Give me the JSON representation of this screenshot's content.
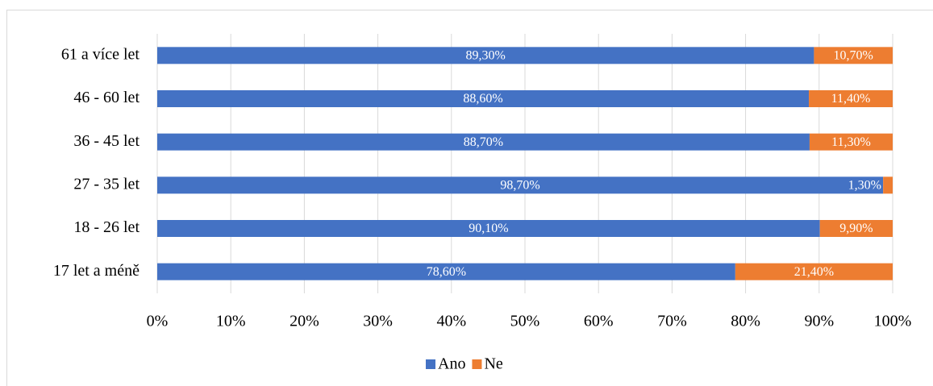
{
  "chart_data": {
    "type": "stacked_bar_horizontal",
    "categories": [
      "61 a více let",
      "46 - 60 let",
      "36 - 45 let",
      "27 - 35 let",
      "18 - 26 let",
      "17 let a méně"
    ],
    "series": [
      {
        "name": "Ano",
        "color": "#4472c4",
        "values": [
          89.3,
          88.6,
          88.7,
          98.7,
          90.1,
          78.6
        ],
        "value_labels": [
          "89,30%",
          "88,60%",
          "88,70%",
          "98,70%",
          "90,10%",
          "78,60%"
        ]
      },
      {
        "name": "Ne",
        "color": "#ed7d31",
        "values": [
          10.7,
          11.4,
          11.3,
          1.3,
          9.9,
          21.4
        ],
        "value_labels": [
          "10,70%",
          "11,40%",
          "11,30%",
          "1,30%",
          "9,90%",
          "21,40%"
        ]
      }
    ],
    "xlim": [
      0,
      100
    ],
    "xticks": [
      {
        "value": 0,
        "label": "0%"
      },
      {
        "value": 10,
        "label": "10%"
      },
      {
        "value": 20,
        "label": "20%"
      },
      {
        "value": 30,
        "label": "30%"
      },
      {
        "value": 40,
        "label": "40%"
      },
      {
        "value": 50,
        "label": "50%"
      },
      {
        "value": 60,
        "label": "60%"
      },
      {
        "value": 70,
        "label": "70%"
      },
      {
        "value": 80,
        "label": "80%"
      },
      {
        "value": 90,
        "label": "90%"
      },
      {
        "value": 100,
        "label": "100%"
      }
    ],
    "grid": true,
    "legend": "bottom"
  }
}
